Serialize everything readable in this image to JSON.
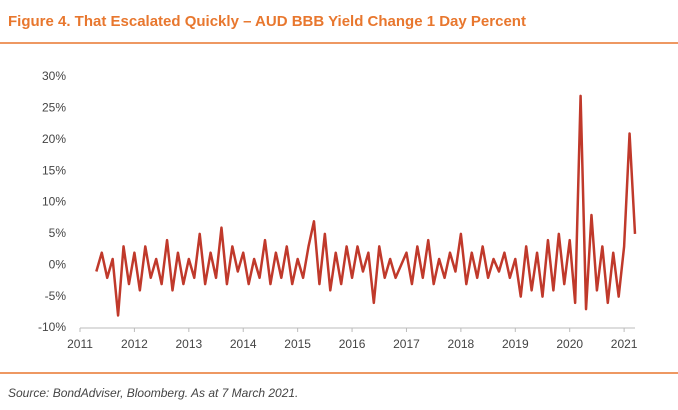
{
  "chart_data": {
    "type": "line",
    "title": "Figure 4. That Escalated Quickly – AUD BBB Yield Change 1 Day Percent",
    "source": "Source: BondAdviser, Bloomberg. As at 7 March 2021.",
    "x": [
      2011.3,
      2011.4,
      2011.5,
      2011.6,
      2011.7,
      2011.8,
      2011.9,
      2012.0,
      2012.1,
      2012.2,
      2012.3,
      2012.4,
      2012.5,
      2012.6,
      2012.7,
      2012.8,
      2012.9,
      2013.0,
      2013.1,
      2013.2,
      2013.3,
      2013.4,
      2013.5,
      2013.6,
      2013.7,
      2013.8,
      2013.9,
      2014.0,
      2014.1,
      2014.2,
      2014.3,
      2014.4,
      2014.5,
      2014.6,
      2014.7,
      2014.8,
      2014.9,
      2015.0,
      2015.1,
      2015.2,
      2015.3,
      2015.4,
      2015.5,
      2015.6,
      2015.7,
      2015.8,
      2015.9,
      2016.0,
      2016.1,
      2016.2,
      2016.3,
      2016.4,
      2016.5,
      2016.6,
      2016.7,
      2016.8,
      2016.9,
      2017.0,
      2017.1,
      2017.2,
      2017.3,
      2017.4,
      2017.5,
      2017.6,
      2017.7,
      2017.8,
      2017.9,
      2018.0,
      2018.1,
      2018.2,
      2018.3,
      2018.4,
      2018.5,
      2018.6,
      2018.7,
      2018.8,
      2018.9,
      2019.0,
      2019.1,
      2019.2,
      2019.3,
      2019.4,
      2019.5,
      2019.6,
      2019.7,
      2019.8,
      2019.9,
      2020.0,
      2020.1,
      2020.2,
      2020.3,
      2020.4,
      2020.5,
      2020.6,
      2020.7,
      2020.8,
      2020.9,
      2021.0,
      2021.1,
      2021.2
    ],
    "series": [
      {
        "name": "AUD BBB Yield Change 1 Day",
        "color": "#c0392b",
        "values": [
          -1,
          2,
          -2,
          1,
          -8,
          3,
          -3,
          2,
          -4,
          3,
          -2,
          1,
          -3,
          4,
          -4,
          2,
          -3,
          1,
          -2,
          5,
          -3,
          2,
          -2,
          6,
          -3,
          3,
          -1,
          2,
          -3,
          1,
          -2,
          4,
          -3,
          2,
          -2,
          3,
          -3,
          1,
          -2,
          3,
          7,
          -3,
          5,
          -4,
          2,
          -3,
          3,
          -2,
          3,
          -1,
          2,
          -6,
          3,
          -2,
          1,
          -2,
          0,
          2,
          -3,
          3,
          -2,
          4,
          -3,
          1,
          -2,
          2,
          -1,
          5,
          -3,
          2,
          -2,
          3,
          -2,
          1,
          -1,
          2,
          -2,
          1,
          -5,
          3,
          -4,
          2,
          -5,
          4,
          -4,
          5,
          -3,
          4,
          -6,
          27,
          -7,
          8,
          -4,
          3,
          -6,
          2,
          -5,
          3,
          21,
          5
        ]
      }
    ],
    "xlim": [
      2011,
      2021.2
    ],
    "xticks": [
      2011,
      2012,
      2013,
      2014,
      2015,
      2016,
      2017,
      2018,
      2019,
      2020,
      2021
    ],
    "ylim": [
      -10,
      30
    ],
    "yticks": [
      {
        "value": -10,
        "label": "-10%"
      },
      {
        "value": -5,
        "label": "-5%"
      },
      {
        "value": 0,
        "label": "0%"
      },
      {
        "value": 5,
        "label": "5%"
      },
      {
        "value": 10,
        "label": "10%"
      },
      {
        "value": 15,
        "label": "15%"
      },
      {
        "value": 20,
        "label": "20%"
      },
      {
        "value": 25,
        "label": "25%"
      },
      {
        "value": 30,
        "label": "30%"
      }
    ],
    "grid": false
  }
}
